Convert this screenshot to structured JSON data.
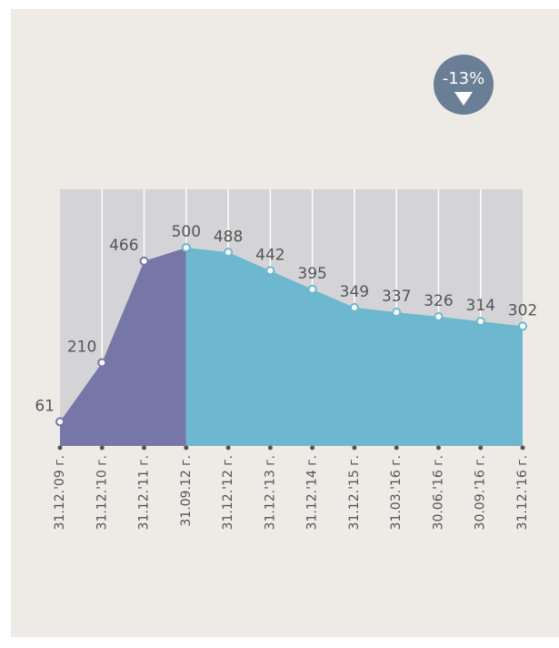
{
  "chart_data": {
    "type": "area",
    "badge": "-13%",
    "categories": [
      "31.12.'09 г.",
      "31.12.'10 г.",
      "31.12.'11 г.",
      "31.09.12 г.",
      "31.12.'12 г.",
      "31.12.'13 г.",
      "31.12.'14 г.",
      "31.12.'15 г.",
      "31.03.'16 г.",
      "30.06.'16 г.",
      "30.09.'16 г.",
      "31.12.'16 г."
    ],
    "series": [
      {
        "color": "#7677a6",
        "values": [
          61,
          210,
          466,
          500,
          null,
          null,
          null,
          null,
          null,
          null,
          null,
          null
        ]
      },
      {
        "color": "#6db8cf",
        "values": [
          null,
          null,
          null,
          500,
          488,
          442,
          395,
          349,
          337,
          326,
          314,
          302
        ]
      }
    ],
    "ylim": [
      0,
      647
    ]
  }
}
